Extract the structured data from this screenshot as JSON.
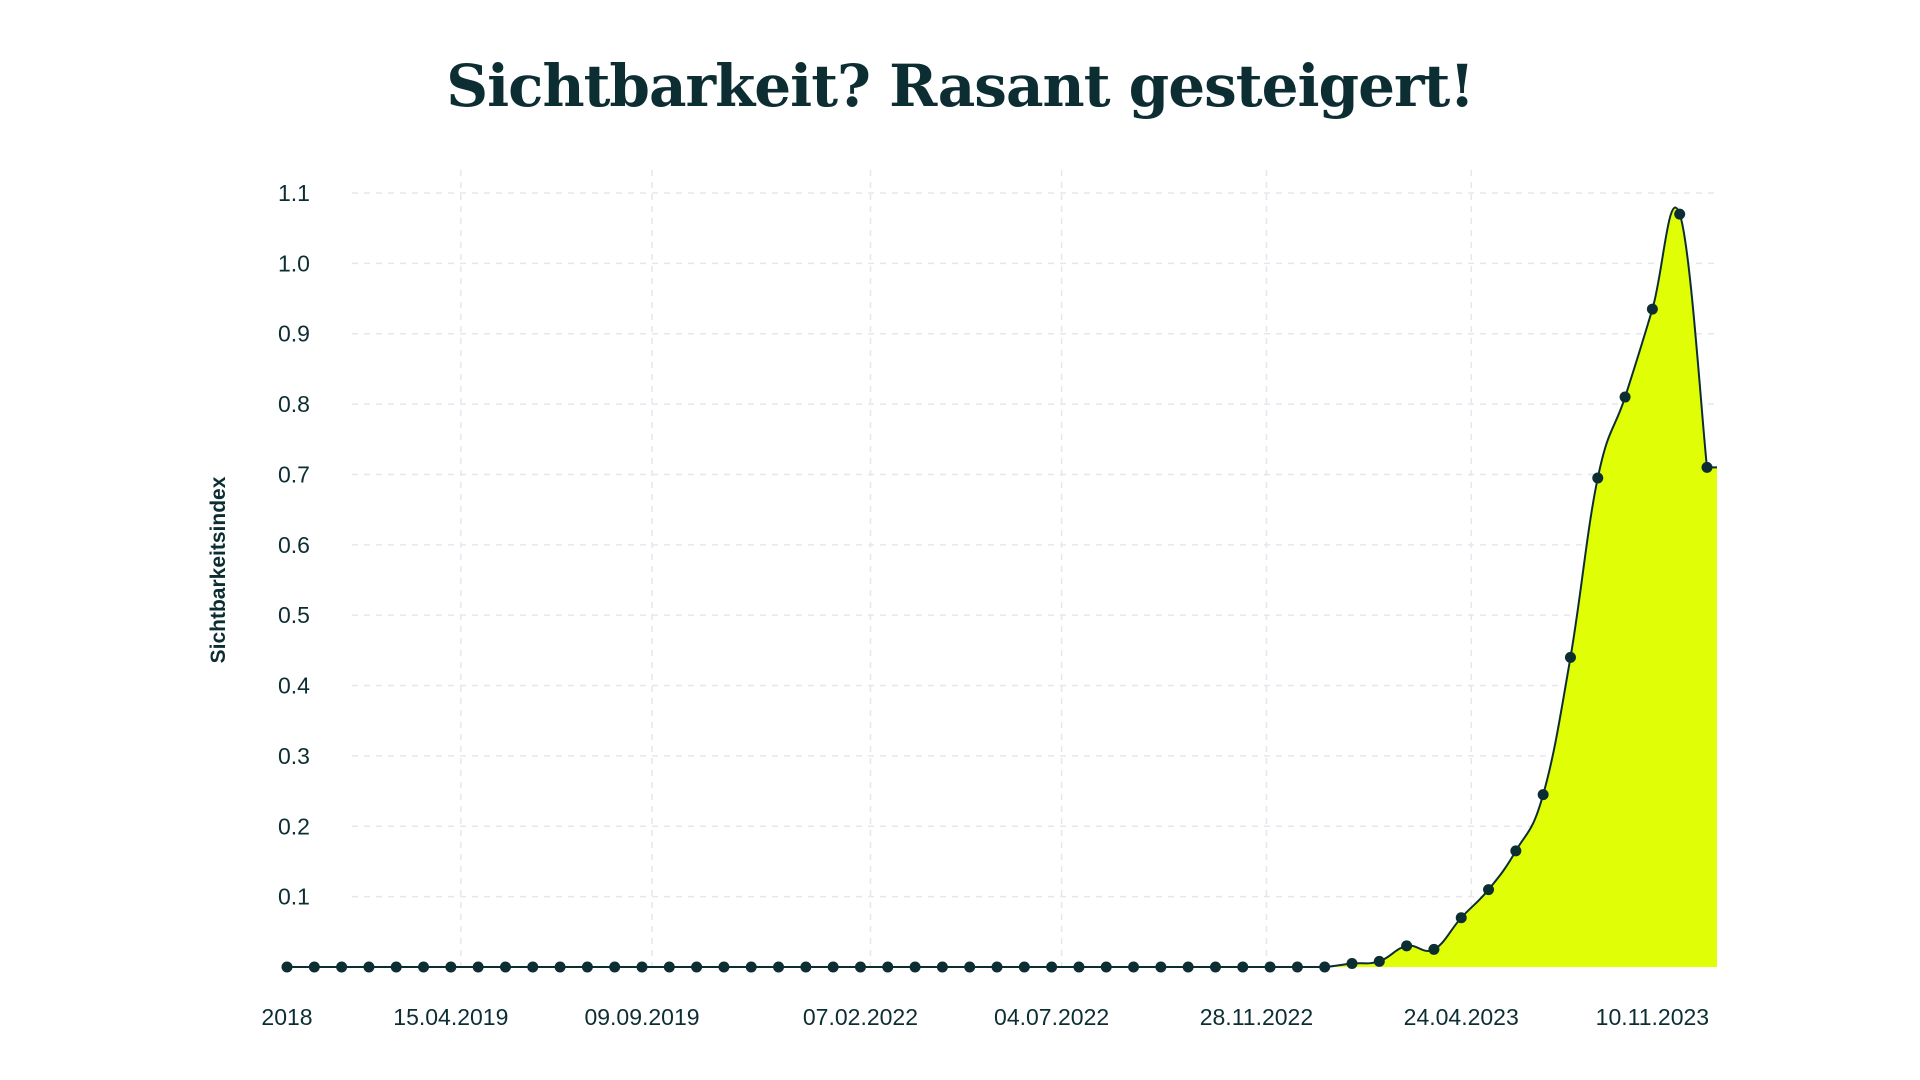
{
  "chart_data": {
    "type": "area",
    "title": "Sichtbarkeit? Rasant gesteigert!",
    "xlabel": "",
    "ylabel": "Sichtbarkeitsindex",
    "ylim": [
      0,
      1.1
    ],
    "yticks": [
      "0.1",
      "0.2",
      "0.3",
      "0.4",
      "0.5",
      "0.6",
      "0.7",
      "0.8",
      "0.9",
      "1.0",
      "1.1"
    ],
    "xticks": [
      {
        "index": 0,
        "label": "2018"
      },
      {
        "index": 6,
        "label": "15.04.2019"
      },
      {
        "index": 13,
        "label": "09.09.2019"
      },
      {
        "index": 21,
        "label": "07.02.2022"
      },
      {
        "index": 28,
        "label": "04.07.2022"
      },
      {
        "index": 35.5,
        "label": "28.11.2022"
      },
      {
        "index": 43,
        "label": "24.04.2023"
      },
      {
        "index": 50,
        "label": "10.11.2023"
      }
    ],
    "grid": true,
    "colors": {
      "fill": "#e0ff06",
      "line": "#0c2e33",
      "grid": "#e6e6ef"
    },
    "values": [
      0,
      0,
      0,
      0,
      0,
      0,
      0,
      0,
      0,
      0,
      0,
      0,
      0,
      0,
      0,
      0,
      0,
      0,
      0,
      0,
      0,
      0,
      0,
      0,
      0,
      0,
      0,
      0,
      0,
      0,
      0,
      0,
      0,
      0,
      0,
      0,
      0,
      0,
      0,
      0.005,
      0.008,
      0.03,
      0.025,
      0.07,
      0.11,
      0.165,
      0.245,
      0.44,
      0.695,
      0.81,
      0.935,
      1.07,
      0.71
    ]
  }
}
